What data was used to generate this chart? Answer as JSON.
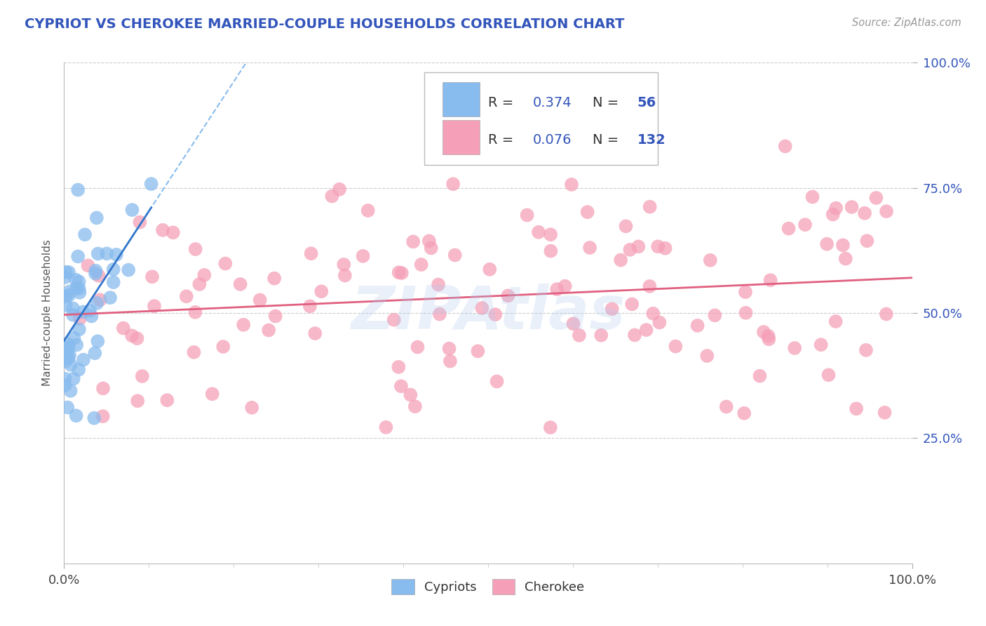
{
  "title": "CYPRIOT VS CHEROKEE MARRIED-COUPLE HOUSEHOLDS CORRELATION CHART",
  "source": "Source: ZipAtlas.com",
  "ylabel": "Married-couple Households",
  "xlim": [
    0.0,
    1.0
  ],
  "ylim": [
    0.0,
    1.0
  ],
  "watermark": "ZIPAtlas",
  "legend_R1": "R = 0.374",
  "legend_N1": "N =  56",
  "legend_R2": "R = 0.076",
  "legend_N2": "N = 132",
  "cypriot_scatter_color": "#88bbee",
  "cypriot_line_color_solid": "#3377cc",
  "cypriot_line_color_dashed": "#88bbee",
  "cherokee_scatter_color": "#f5a0b8",
  "cherokee_line_color": "#e06080",
  "title_color": "#3355bb",
  "source_color": "#999999",
  "legend_number_color": "#3355bb",
  "axis_label_color": "#3355bb",
  "background_color": "#ffffff",
  "grid_color": "#cccccc",
  "seed": 99
}
